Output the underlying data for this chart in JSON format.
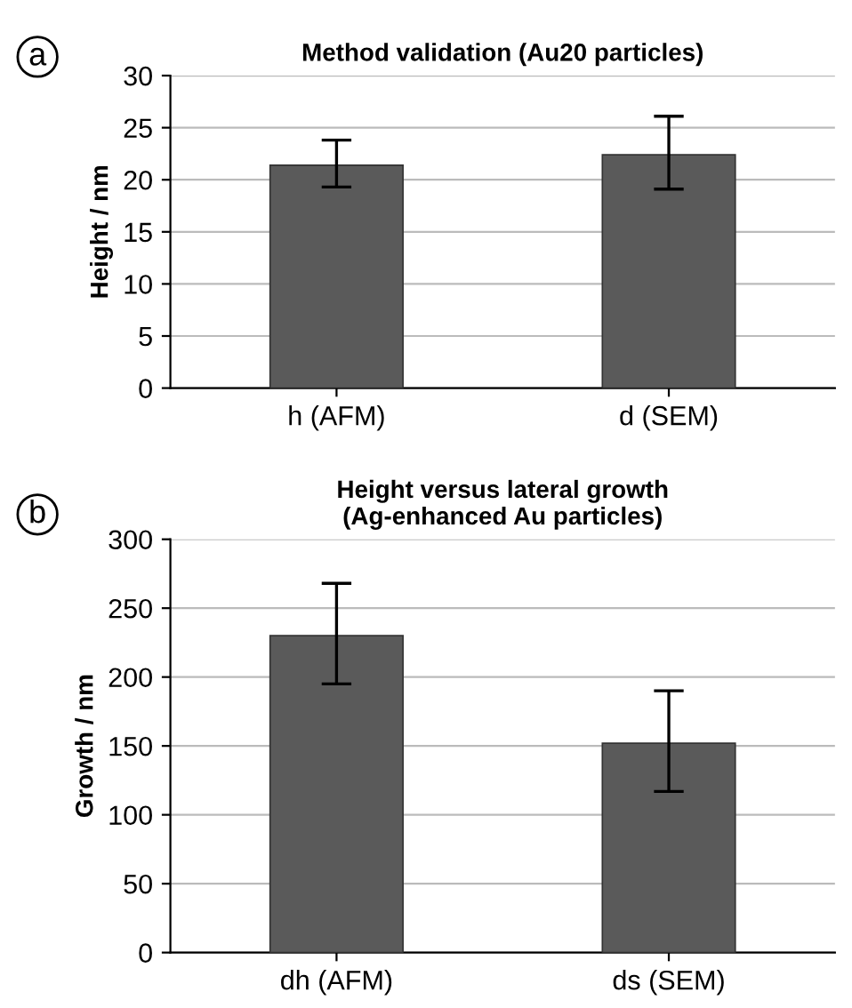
{
  "chart_data": [
    {
      "type": "bar",
      "title": "Method validation (Au20 particles)",
      "ylabel": "Height / nm",
      "categories": [
        "h (AFM)",
        "d (SEM)"
      ],
      "values": [
        21.4,
        22.4
      ],
      "errors": [
        [
          19.3,
          23.8
        ],
        [
          19.1,
          26.1
        ]
      ],
      "color": "#5a5a5a",
      "ylim": [
        0,
        30
      ],
      "yticks": [
        0,
        5,
        10,
        15,
        20,
        25,
        30
      ],
      "grid": "y",
      "annotations": [
        "a"
      ]
    },
    {
      "type": "bar",
      "title": "Height versus lateral growth\n(Ag-enhanced Au particles)",
      "ylabel": "Growth / nm",
      "categories": [
        "dh (AFM)",
        "ds (SEM)"
      ],
      "values": [
        230,
        152
      ],
      "errors": [
        [
          195,
          268
        ],
        [
          117,
          190
        ]
      ],
      "color": "#5a5a5a",
      "ylim": [
        0,
        300
      ],
      "yticks": [
        0,
        50,
        100,
        150,
        200,
        250,
        300
      ],
      "grid": "y",
      "annotations": [
        "b"
      ]
    }
  ]
}
